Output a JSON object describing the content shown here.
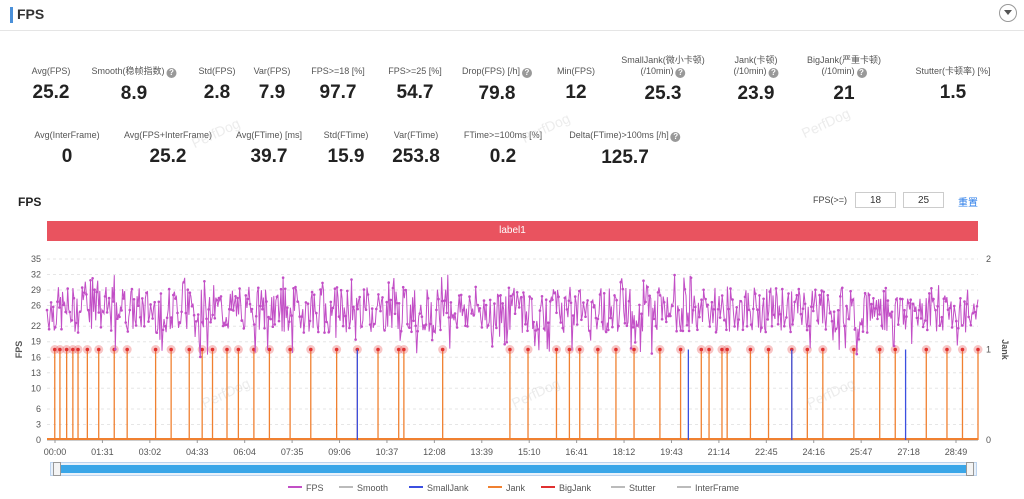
{
  "header": {
    "title": "FPS"
  },
  "stats_row1": [
    {
      "label": "Avg(FPS)",
      "value": "25.2",
      "help": false
    },
    {
      "label": "Smooth(稳帧指数)",
      "value": "8.9",
      "help": true
    },
    {
      "label": "Std(FPS)",
      "value": "2.8",
      "help": false
    },
    {
      "label": "Var(FPS)",
      "value": "7.9",
      "help": false
    },
    {
      "label": "FPS>=18 [%]",
      "value": "97.7",
      "help": false
    },
    {
      "label": "FPS>=25 [%]",
      "value": "54.7",
      "help": false
    },
    {
      "label": "Drop(FPS) [/h]",
      "value": "79.8",
      "help": true
    },
    {
      "label": "Min(FPS)",
      "value": "12",
      "help": false
    },
    {
      "label": "SmallJank(微小卡顿)",
      "label2": "(/10min)",
      "value": "25.3",
      "help": true
    },
    {
      "label": "Jank(卡顿)",
      "label2": "(/10min)",
      "value": "23.9",
      "help": true
    },
    {
      "label": "BigJank(严重卡顿)",
      "label2": "(/10min)",
      "value": "21",
      "help": true
    },
    {
      "label": "Stutter(卡顿率) [%]",
      "value": "1.5",
      "help": false
    }
  ],
  "stats_row2": [
    {
      "label": "Avg(InterFrame)",
      "value": "0",
      "help": false
    },
    {
      "label": "Avg(FPS+InterFrame)",
      "value": "25.2",
      "help": false
    },
    {
      "label": "Avg(FTime) [ms]",
      "value": "39.7",
      "help": false
    },
    {
      "label": "Std(FTime)",
      "value": "15.9",
      "help": false
    },
    {
      "label": "Var(FTime)",
      "value": "253.8",
      "help": false
    },
    {
      "label": "FTime>=100ms [%]",
      "value": "0.2",
      "help": false
    },
    {
      "label": "Delta(FTime)>100ms [/h]",
      "value": "125.7",
      "help": true
    }
  ],
  "chart_section": {
    "title": "FPS",
    "filter_label": "FPS(>=)",
    "filter_low": "18",
    "filter_high": "25",
    "reset_label": "重置",
    "band_label": "label1",
    "watermark": "PerfDog"
  },
  "chart_data": {
    "type": "line",
    "ylabel": "FPS",
    "y2label": "Jank",
    "y_ticks": [
      0,
      3,
      6,
      10,
      13,
      16,
      19,
      22,
      26,
      29,
      32,
      35
    ],
    "y2_ticks": [
      0,
      1,
      2
    ],
    "ylim": [
      0,
      35
    ],
    "y2lim": [
      0,
      2
    ],
    "x_ticks": [
      "00:00",
      "01:31",
      "03:02",
      "04:33",
      "06:04",
      "07:35",
      "09:06",
      "10:37",
      "12:08",
      "13:39",
      "15:10",
      "16:41",
      "18:12",
      "19:43",
      "21:14",
      "22:45",
      "24:16",
      "25:47",
      "27:18",
      "28:49"
    ],
    "duration_seconds": 1800,
    "fps_summary": {
      "avg": 25.2,
      "min": 12,
      "std": 2.8
    },
    "bigjank_times": [
      15,
      25,
      38,
      50,
      60,
      78,
      100,
      130,
      155,
      210,
      240,
      275,
      300,
      320,
      348,
      370,
      400,
      430,
      470,
      510,
      560,
      600,
      640,
      680,
      690,
      765,
      895,
      930,
      985,
      1010,
      1030,
      1065,
      1100,
      1135,
      1185,
      1225,
      1265,
      1280,
      1305,
      1315,
      1360,
      1395,
      1440,
      1470,
      1500,
      1560,
      1610,
      1640,
      1700,
      1740,
      1770,
      1800
    ],
    "smalljank_times": [
      600,
      1240,
      1440,
      1660
    ],
    "legend": [
      {
        "name": "FPS",
        "color": "#c24fc6"
      },
      {
        "name": "Smooth",
        "color": "#bbbbbb"
      },
      {
        "name": "SmallJank",
        "color": "#3b4fe0"
      },
      {
        "name": "Jank",
        "color": "#f08030"
      },
      {
        "name": "BigJank",
        "color": "#e03030"
      },
      {
        "name": "Stutter",
        "color": "#bbbbbb"
      },
      {
        "name": "InterFrame",
        "color": "#bbbbbb"
      }
    ]
  }
}
